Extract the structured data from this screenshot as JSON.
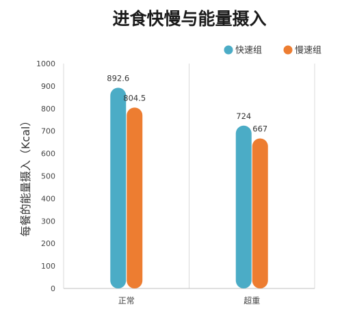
{
  "chart_data": {
    "type": "bar",
    "title": "进食快慢与能量摄入",
    "ylabel": "每餐的能量摄入（Kcal）",
    "xlabel": "",
    "categories": [
      "正常",
      "超重"
    ],
    "series": [
      {
        "name": "快速组",
        "values": [
          892.6,
          724
        ],
        "labels": [
          "892.6",
          "724"
        ],
        "color": "#4bacc6"
      },
      {
        "name": "慢速组",
        "values": [
          804.5,
          667
        ],
        "labels": [
          "804.5",
          "667"
        ],
        "color": "#ed7d31"
      }
    ],
    "ylim": [
      0,
      1000
    ],
    "yticks": [
      0,
      100,
      200,
      300,
      400,
      500,
      600,
      700,
      800,
      900,
      1000
    ],
    "grid": "vertical-category-separators",
    "legend": "top-right"
  }
}
